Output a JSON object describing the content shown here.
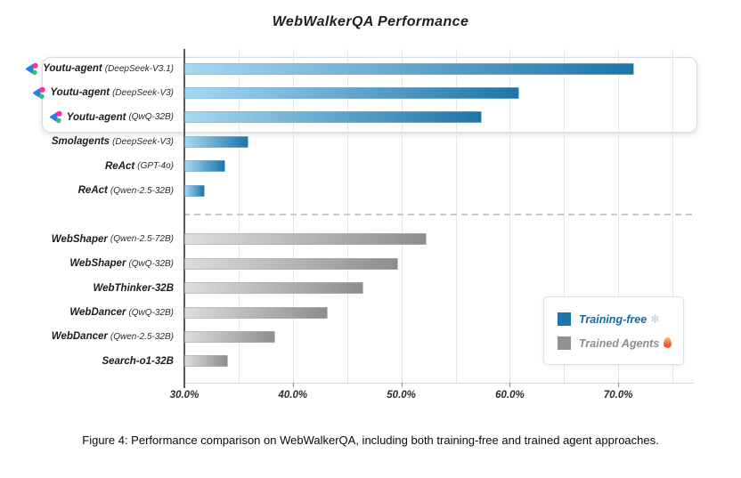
{
  "caption": "Figure 4: Performance comparison on WebWalkerQA, including both training-free and trained agent approaches.",
  "chart_data": {
    "type": "bar",
    "orientation": "horizontal",
    "title": "WebWalkerQA Performance",
    "xlabel": "",
    "ylabel": "",
    "x_axis": {
      "unit": "%",
      "min": 30,
      "max": 77,
      "tick_labels": [
        "30.0%",
        "40.0%",
        "50.0%",
        "60.0%",
        "70.0%"
      ],
      "tick_values": [
        30,
        40,
        50,
        60,
        70
      ],
      "gridline_step": 5,
      "grid": true
    },
    "divider_after_index": 5,
    "bars": [
      {
        "name": "Youtu-agent",
        "model": "(DeepSeek-V3.1)",
        "value": 71.5,
        "group": "training-free",
        "logo": true,
        "highlighted": true
      },
      {
        "name": "Youtu-agent",
        "model": "(DeepSeek-V3)",
        "value": 60.9,
        "group": "training-free",
        "logo": true,
        "highlighted": true
      },
      {
        "name": "Youtu-agent",
        "model": "(QwQ-32B)",
        "value": 57.4,
        "group": "training-free",
        "logo": true,
        "highlighted": true
      },
      {
        "name": "Smolagents",
        "model": "(DeepSeek-V3)",
        "value": 35.9,
        "group": "training-free",
        "logo": false,
        "highlighted": false
      },
      {
        "name": "ReAct",
        "model": "(GPT-4o)",
        "value": 33.8,
        "group": "training-free",
        "logo": false,
        "highlighted": false
      },
      {
        "name": "ReAct",
        "model": "(Qwen-2.5-32B)",
        "value": 31.9,
        "group": "training-free",
        "logo": false,
        "highlighted": false
      },
      {
        "name": "WebShaper",
        "model": "(Qwen-2.5-72B)",
        "value": 52.3,
        "group": "trained",
        "logo": false,
        "highlighted": false
      },
      {
        "name": "WebShaper",
        "model": "(QwQ-32B)",
        "value": 49.7,
        "group": "trained",
        "logo": false,
        "highlighted": false
      },
      {
        "name": "WebThinker-32B",
        "model": "",
        "value": 46.5,
        "group": "trained",
        "logo": false,
        "highlighted": false
      },
      {
        "name": "WebDancer",
        "model": "(QwQ-32B)",
        "value": 43.2,
        "group": "trained",
        "logo": false,
        "highlighted": false
      },
      {
        "name": "WebDancer",
        "model": "(Qwen-2.5-32B)",
        "value": 38.4,
        "group": "trained",
        "logo": false,
        "highlighted": false
      },
      {
        "name": "Search-o1-32B",
        "model": "",
        "value": 34.0,
        "group": "trained",
        "logo": false,
        "highlighted": false
      }
    ],
    "legend": {
      "position": "lower right",
      "items": [
        {
          "label": "Training-free",
          "icon": "snowflake-icon",
          "color": "#1b76ab"
        },
        {
          "label": "Trained Agents",
          "icon": "flame-icon",
          "color": "#919191"
        }
      ]
    },
    "colors": {
      "training_free_gradient": [
        "#a7d8f2",
        "#1e74a8"
      ],
      "trained_gradient": [
        "#dddddd",
        "#8d8d8d"
      ],
      "axis_line": "#5a5a5a",
      "gridline": "#e7e7e7",
      "divider": "#cbcbcb"
    }
  }
}
